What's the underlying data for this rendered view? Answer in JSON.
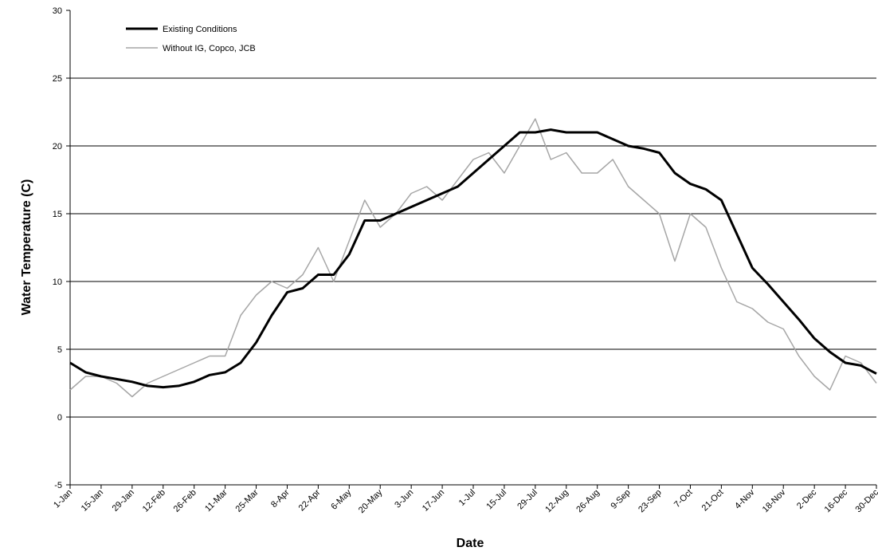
{
  "chart_data": {
    "type": "line",
    "x_label": "Date",
    "y_label": "Water Temperature (C)",
    "categories": [
      "1-Jan",
      null,
      "15-Jan",
      null,
      "29-Jan",
      null,
      "12-Feb",
      null,
      "26-Feb",
      null,
      "11-Mar",
      null,
      "25-Mar",
      null,
      "8-Apr",
      null,
      "22-Apr",
      null,
      "6-May",
      null,
      "20-May",
      null,
      "3-Jun",
      null,
      "17-Jun",
      null,
      "1-Jul",
      null,
      "15-Jul",
      null,
      "29-Jul",
      null,
      "12-Aug",
      null,
      "26-Aug",
      null,
      "9-Sep",
      null,
      "23-Sep",
      null,
      "7-Oct",
      null,
      "21-Oct",
      null,
      "4-Nov",
      null,
      "18-Nov",
      null,
      "2-Dec",
      null,
      "16-Dec",
      null,
      "30-Dec"
    ],
    "series": [
      {
        "name": "Existing Conditions",
        "color": "#000000",
        "width": 3,
        "values": [
          4,
          3.3,
          3,
          2.8,
          2.6,
          2.3,
          2.2,
          2.3,
          2.6,
          3.1,
          3.3,
          4,
          5.5,
          7.5,
          9.2,
          9.5,
          10.5,
          10.5,
          12,
          14.5,
          14.5,
          15,
          15.5,
          16,
          16.5,
          17,
          18,
          19,
          20,
          21,
          21,
          21.2,
          21,
          21,
          21,
          20.5,
          20,
          19.8,
          19.5,
          18,
          17.2,
          16.8,
          16,
          13.5,
          11,
          9.8,
          8.5,
          7.2,
          5.8,
          4.8,
          4,
          3.8,
          3.2
        ]
      },
      {
        "name": "Without IG, Copco, JCB",
        "color": "#a6a6a6",
        "width": 1.5,
        "values": [
          2,
          3,
          3,
          2.5,
          1.5,
          2.5,
          3,
          3.5,
          4,
          4.5,
          4.5,
          7.5,
          9,
          10,
          9.5,
          10.5,
          12.5,
          10,
          13,
          16,
          14,
          15,
          16.5,
          17,
          16,
          17.5,
          19,
          19.5,
          18,
          20,
          22,
          19,
          19.5,
          18,
          18,
          19,
          17,
          16,
          15,
          11.5,
          15,
          14,
          11,
          8.5,
          8,
          7,
          6.5,
          4.5,
          3,
          2,
          4.5,
          4,
          2.5
        ]
      }
    ],
    "ylim": [
      -5,
      30
    ],
    "yticks": [
      -5,
      0,
      5,
      10,
      15,
      20,
      25,
      30
    ],
    "grid": true,
    "legend": "upper-left"
  }
}
